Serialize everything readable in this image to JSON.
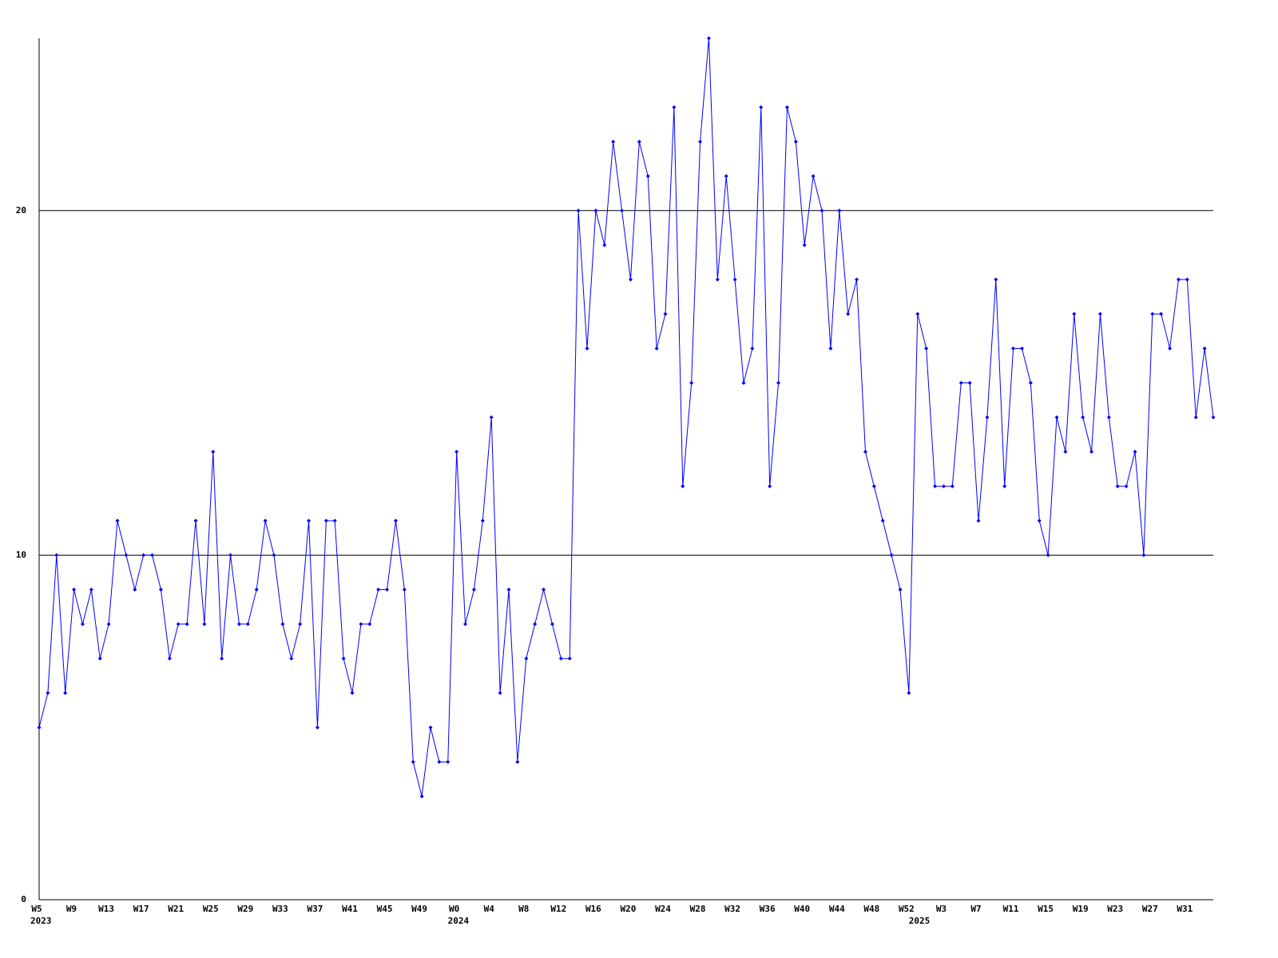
{
  "chart_data": {
    "type": "line",
    "categories": [
      "W5",
      null,
      null,
      null,
      "W9",
      null,
      null,
      null,
      "W13",
      null,
      null,
      null,
      "W17",
      null,
      null,
      null,
      "W21",
      null,
      null,
      null,
      "W25",
      null,
      null,
      null,
      "W29",
      null,
      null,
      null,
      "W33",
      null,
      null,
      null,
      "W37",
      null,
      null,
      null,
      "W41",
      null,
      null,
      null,
      "W45",
      null,
      null,
      null,
      "W49",
      null,
      null,
      null,
      "W0",
      null,
      null,
      null,
      "W4",
      null,
      null,
      null,
      "W8",
      null,
      null,
      null,
      "W12",
      null,
      null,
      null,
      "W16",
      null,
      null,
      null,
      "W20",
      null,
      null,
      null,
      "W24",
      null,
      null,
      null,
      "W28",
      null,
      null,
      null,
      "W32",
      null,
      null,
      null,
      "W36",
      null,
      null,
      null,
      "W40",
      null,
      null,
      null,
      "W44",
      null,
      null,
      null,
      "W48",
      null,
      null,
      null,
      "W52",
      null,
      null,
      null,
      "W3",
      null,
      null,
      null,
      "W7",
      null,
      null,
      null,
      "W11",
      null,
      null,
      null,
      "W15",
      null,
      null,
      null,
      "W19",
      null,
      null,
      null,
      "W23",
      null,
      null,
      null,
      "W27",
      null,
      null,
      null,
      "W31",
      null,
      null,
      null
    ],
    "x_groups": [
      "2023",
      null,
      null,
      null,
      null,
      null,
      null,
      null,
      null,
      null,
      null,
      null,
      null,
      null,
      null,
      null,
      null,
      null,
      null,
      null,
      null,
      null,
      null,
      null,
      null,
      null,
      null,
      null,
      null,
      null,
      null,
      null,
      null,
      null,
      null,
      null,
      null,
      null,
      null,
      null,
      null,
      null,
      null,
      null,
      null,
      null,
      null,
      null,
      "2024",
      null,
      null,
      null,
      null,
      null,
      null,
      null,
      null,
      null,
      null,
      null,
      null,
      null,
      null,
      null,
      null,
      null,
      null,
      null,
      null,
      null,
      null,
      null,
      null,
      null,
      null,
      null,
      null,
      null,
      null,
      null,
      null,
      null,
      null,
      null,
      null,
      null,
      null,
      null,
      null,
      null,
      null,
      null,
      null,
      null,
      null,
      null,
      null,
      null,
      null,
      null,
      null,
      "2025",
      null,
      null,
      null,
      null,
      null,
      null,
      null,
      null,
      null,
      null,
      null,
      null,
      null,
      null,
      null,
      null,
      null,
      null,
      null,
      null,
      null,
      null,
      null,
      null,
      null,
      null,
      null,
      null,
      null,
      null,
      null,
      null,
      null
    ],
    "series": [
      {
        "color": "#0000ff",
        "values": [
          5,
          6,
          10,
          6,
          9,
          8,
          9,
          7,
          8,
          11,
          10,
          9,
          10,
          10,
          9,
          7,
          8,
          8,
          11,
          8,
          13,
          7,
          10,
          8,
          8,
          9,
          11,
          10,
          8,
          7,
          8,
          11,
          5,
          11,
          11,
          7,
          6,
          8,
          8,
          9,
          9,
          11,
          9,
          4,
          3,
          5,
          4,
          4,
          13,
          8,
          9,
          11,
          14,
          6,
          9,
          4,
          7,
          8,
          9,
          8,
          7,
          7,
          20,
          16,
          20,
          19,
          22,
          20,
          18,
          22,
          21,
          16,
          17,
          23,
          12,
          15,
          22,
          25,
          18,
          21,
          18,
          15,
          16,
          23,
          12,
          15,
          23,
          22,
          19,
          21,
          20,
          16,
          20,
          17,
          18,
          13,
          12,
          11,
          10,
          9,
          6,
          17,
          16,
          12,
          12,
          12,
          15,
          15,
          11,
          14,
          18,
          12,
          16,
          16,
          15,
          11,
          10,
          14,
          13,
          17,
          14,
          13,
          17,
          14,
          12,
          12,
          13,
          10,
          17,
          17,
          16,
          18,
          18,
          14,
          16,
          14
        ]
      }
    ],
    "ylim": [
      0,
      25
    ],
    "yticks": [
      0,
      10,
      20
    ],
    "grid": true
  }
}
